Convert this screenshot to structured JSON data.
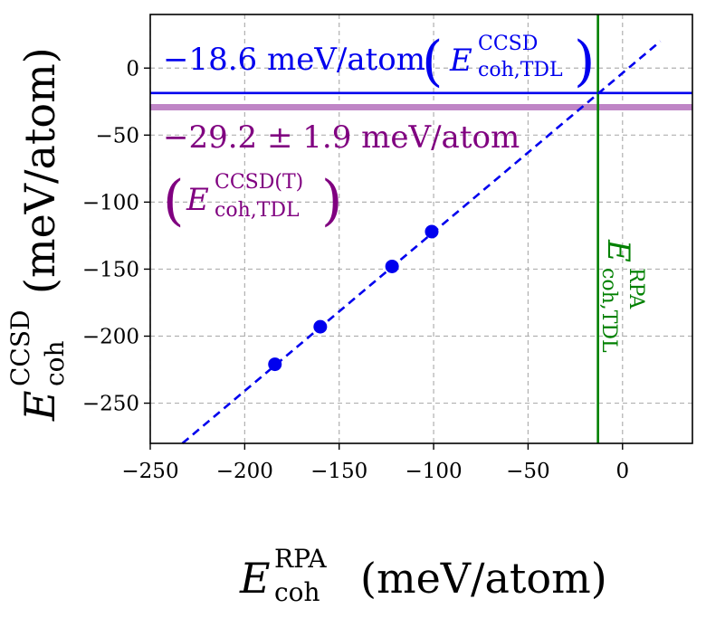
{
  "chart_data": {
    "type": "scatter",
    "title": "",
    "xlabel": "E_coh^RPA (meV/atom)",
    "ylabel": "E_coh^CCSD (meV/atom)",
    "xlim": [
      -250,
      37
    ],
    "ylim": [
      -280,
      40
    ],
    "xticks": [
      -250,
      -200,
      -150,
      -100,
      -50,
      0
    ],
    "yticks": [
      -250,
      -200,
      -150,
      -100,
      -50,
      0
    ],
    "grid": true,
    "series": [
      {
        "type": "scatter",
        "color": "#0000ee",
        "points": [
          {
            "x": -184,
            "y": -221
          },
          {
            "x": -160,
            "y": -193
          },
          {
            "x": -122,
            "y": -148
          },
          {
            "x": -101,
            "y": -122
          }
        ]
      },
      {
        "type": "line",
        "style": "dashed",
        "color": "#0000ee",
        "points": [
          {
            "x": -233,
            "y": -280
          },
          {
            "x": 20,
            "y": 20
          }
        ]
      }
    ],
    "reference_lines": [
      {
        "orientation": "horizontal",
        "value": -18.6,
        "color": "#0000ee",
        "width": "thin"
      },
      {
        "orientation": "horizontal",
        "value": -29.2,
        "uncertainty": 1.9,
        "color": "#bf85c6",
        "width": "thick"
      },
      {
        "orientation": "vertical",
        "value": -13,
        "color": "#008000",
        "width": "thin"
      }
    ],
    "annotations": [
      {
        "name": "ccsd",
        "text": "−18.6 meV/atom (E_coh,TDL^CCSD)",
        "color": "#0000ee"
      },
      {
        "name": "ccsdt",
        "text": "−29.2 ± 1.9 meV/atom (E_coh,TDL^CCSD(T))",
        "color": "#800080"
      },
      {
        "name": "rpa",
        "text": "E_coh,TDL^RPA",
        "color": "#008000"
      }
    ]
  },
  "labels": {
    "x_main": "E",
    "x_sup": "RPA",
    "x_sub": "coh",
    "x_unit": "(meV/atom)",
    "y_main": "E",
    "y_sup": "CCSD",
    "y_sub": "coh",
    "y_unit": "(meV/atom)",
    "ann_ccsd_value": "−18.6 meV/atom",
    "ann_ccsd_sup": "CCSD",
    "ann_ccsd_sub": "coh,TDL",
    "ann_ccsdt_value": "−29.2 ± 1.9 meV/atom",
    "ann_ccsdt_sup": "CCSD(T)",
    "ann_ccsdt_sub": "coh,TDL",
    "ann_rpa_main": "E",
    "ann_rpa_sup": "RPA",
    "ann_rpa_sub": "coh,TDL",
    "paren_open": "(",
    "paren_close": ")",
    "e_letter": "E"
  }
}
